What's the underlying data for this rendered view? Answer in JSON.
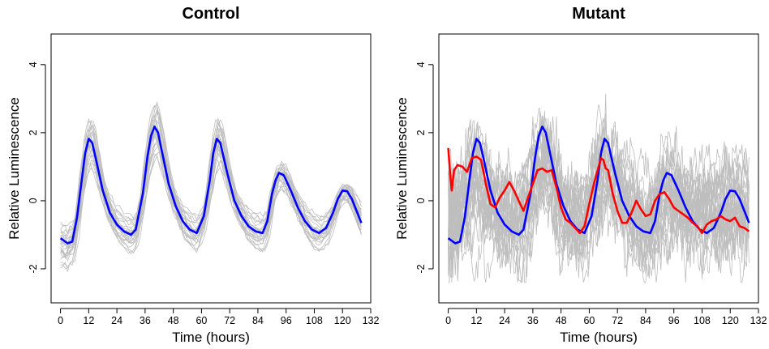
{
  "chart_data": [
    {
      "type": "line",
      "title": "Control",
      "xlabel": "Time (hours)",
      "ylabel": "Relative Luminescence",
      "xlim": [
        -4,
        132
      ],
      "ylim": [
        -3,
        4.9
      ],
      "xticks": [
        0,
        12,
        24,
        36,
        48,
        60,
        72,
        84,
        96,
        108,
        120,
        132
      ],
      "yticks": [
        -2,
        0,
        2,
        4
      ],
      "ytick_rotation": "vertical",
      "grid": false,
      "legend": "none",
      "background_traces": {
        "count": 25,
        "color": "#bebebe",
        "description_of_shape": "individual replicate rhythms, ~26h period, amplitude damping"
      },
      "series": [
        {
          "color": "#0000ff",
          "x": [
            0,
            3,
            5,
            7,
            9,
            10.5,
            12,
            13.5,
            15,
            18,
            21,
            24,
            27,
            30,
            32,
            35,
            37,
            38.5,
            40,
            41.5,
            43,
            46,
            49,
            52,
            55,
            58,
            61,
            63.5,
            65,
            66.5,
            68,
            71,
            74,
            77,
            80,
            83,
            86,
            88,
            90,
            91.5,
            93,
            95,
            98,
            101,
            104,
            107,
            110,
            113,
            116,
            118,
            120,
            122,
            124,
            126,
            128
          ],
          "y": [
            -1.1,
            -1.25,
            -1.2,
            -0.5,
            0.6,
            1.4,
            1.82,
            1.7,
            1.25,
            0.3,
            -0.35,
            -0.7,
            -0.9,
            -1.0,
            -0.85,
            0.2,
            1.3,
            1.9,
            2.18,
            2.0,
            1.5,
            0.5,
            -0.15,
            -0.6,
            -0.85,
            -0.95,
            -0.45,
            0.6,
            1.4,
            1.82,
            1.7,
            0.8,
            0.0,
            -0.45,
            -0.75,
            -0.9,
            -0.95,
            -0.6,
            0.2,
            0.6,
            0.82,
            0.75,
            0.3,
            -0.2,
            -0.6,
            -0.85,
            -0.95,
            -0.8,
            -0.35,
            0.05,
            0.3,
            0.28,
            0.05,
            -0.3,
            -0.65
          ]
        }
      ]
    },
    {
      "type": "line",
      "title": "Mutant",
      "xlabel": "Time (hours)",
      "ylabel": "Relative Luminescence",
      "xlim": [
        -4,
        132
      ],
      "ylim": [
        -3,
        4.9
      ],
      "xticks": [
        0,
        12,
        24,
        36,
        48,
        60,
        72,
        84,
        96,
        108,
        120,
        132
      ],
      "yticks": [
        -2,
        0,
        2,
        4
      ],
      "ytick_rotation": "vertical",
      "grid": false,
      "legend": "none",
      "background_traces": {
        "count": 25,
        "color": "#bebebe",
        "description_of_shape": "noisy individual replicate traces spanning roughly -2.3 to 4"
      },
      "series": [
        {
          "color": "#0000ff",
          "x": [
            0,
            3,
            5,
            7,
            9,
            10.5,
            12,
            13.5,
            15,
            18,
            21,
            24,
            27,
            30,
            32,
            35,
            37,
            38.5,
            40,
            41.5,
            43,
            46,
            49,
            52,
            55,
            58,
            61,
            63.5,
            65,
            66.5,
            68,
            71,
            74,
            77,
            80,
            83,
            86,
            88,
            90,
            91.5,
            93,
            95,
            98,
            101,
            104,
            107,
            110,
            113,
            116,
            118,
            120,
            122,
            124,
            126,
            128
          ],
          "y": [
            -1.1,
            -1.25,
            -1.2,
            -0.5,
            0.6,
            1.4,
            1.82,
            1.7,
            1.25,
            0.3,
            -0.35,
            -0.7,
            -0.9,
            -1.0,
            -0.85,
            0.2,
            1.3,
            1.9,
            2.18,
            2.0,
            1.5,
            0.5,
            -0.15,
            -0.6,
            -0.85,
            -0.95,
            -0.45,
            0.6,
            1.4,
            1.82,
            1.7,
            0.8,
            0.0,
            -0.45,
            -0.75,
            -0.9,
            -0.95,
            -0.6,
            0.2,
            0.6,
            0.82,
            0.75,
            0.3,
            -0.2,
            -0.6,
            -0.85,
            -0.95,
            -0.8,
            -0.35,
            0.05,
            0.3,
            0.28,
            0.05,
            -0.3,
            -0.65
          ]
        },
        {
          "color": "#ff0000",
          "x": [
            0,
            0.8,
            1.5,
            2.5,
            4,
            6,
            8,
            10,
            12,
            14,
            16,
            18,
            20,
            22,
            24,
            26,
            28,
            30,
            32,
            34,
            36,
            38,
            40,
            42,
            44,
            46,
            48,
            50,
            52,
            54,
            56,
            58,
            60,
            62,
            64,
            65,
            66,
            67,
            68,
            70,
            72,
            74,
            76,
            78,
            80,
            82,
            84,
            86,
            88,
            90,
            92,
            94,
            96,
            98,
            100,
            102,
            104,
            106,
            108,
            110,
            112,
            114,
            116,
            118,
            120,
            122,
            124,
            126,
            128
          ],
          "y": [
            1.55,
            0.8,
            0.3,
            0.9,
            1.05,
            1.0,
            0.85,
            1.25,
            1.3,
            1.2,
            0.5,
            -0.1,
            -0.2,
            0.1,
            0.3,
            0.55,
            0.3,
            0.0,
            -0.3,
            0.1,
            0.5,
            0.9,
            0.95,
            0.85,
            0.9,
            0.4,
            -0.2,
            -0.55,
            -0.65,
            -0.8,
            -0.95,
            -0.75,
            -0.1,
            0.5,
            1.0,
            1.25,
            1.2,
            0.95,
            0.9,
            0.2,
            -0.3,
            -0.65,
            -0.65,
            -0.35,
            0.0,
            -0.25,
            -0.45,
            -0.4,
            0.0,
            0.2,
            0.25,
            0.05,
            -0.2,
            -0.3,
            -0.4,
            -0.5,
            -0.65,
            -0.75,
            -0.95,
            -0.7,
            -0.6,
            -0.55,
            -0.45,
            -0.55,
            -0.6,
            -0.5,
            -0.75,
            -0.8,
            -0.9
          ]
        }
      ]
    }
  ]
}
